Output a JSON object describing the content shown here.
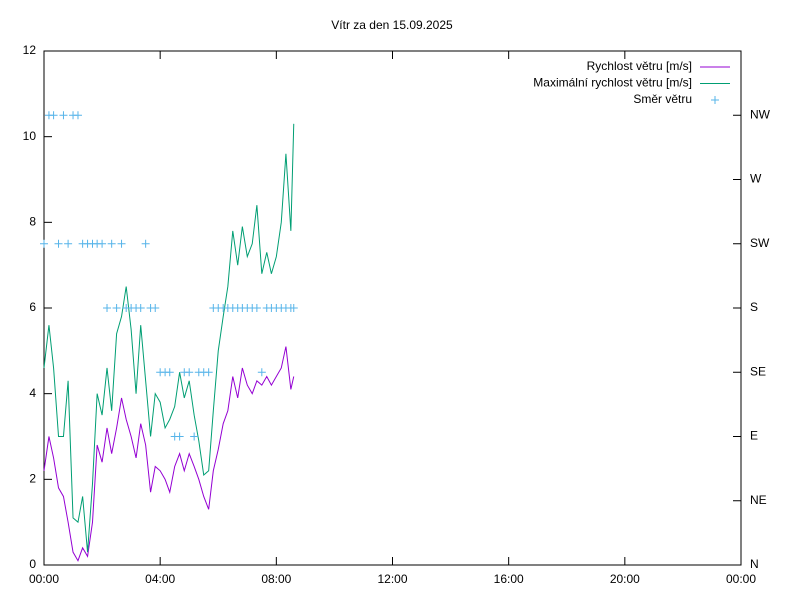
{
  "chart_data": {
    "type": "line",
    "title": "Vítr za den 15.09.2025",
    "x": [
      0,
      0.17,
      0.33,
      0.5,
      0.67,
      0.83,
      1,
      1.17,
      1.33,
      1.5,
      1.67,
      1.83,
      2,
      2.17,
      2.33,
      2.5,
      2.67,
      2.83,
      3,
      3.17,
      3.33,
      3.5,
      3.67,
      3.83,
      4,
      4.17,
      4.33,
      4.5,
      4.67,
      4.83,
      5,
      5.17,
      5.33,
      5.5,
      5.67,
      5.83,
      6,
      6.17,
      6.33,
      6.5,
      6.67,
      6.83,
      7,
      7.17,
      7.33,
      7.5,
      7.67,
      7.83,
      8,
      8.17,
      8.33,
      8.5,
      8.6
    ],
    "xlim": [
      0,
      24
    ],
    "xticks": [
      {
        "value": 0,
        "label": "00:00"
      },
      {
        "value": 4,
        "label": "04:00"
      },
      {
        "value": 8,
        "label": "08:00"
      },
      {
        "value": 12,
        "label": "12:00"
      },
      {
        "value": 16,
        "label": "16:00"
      },
      {
        "value": 20,
        "label": "20:00"
      },
      {
        "value": 24,
        "label": "00:00"
      }
    ],
    "ylim": [
      0,
      12
    ],
    "yticks": [
      0,
      2,
      4,
      6,
      8,
      10,
      12
    ],
    "y2lim": [
      0,
      360
    ],
    "y2ticks": [
      {
        "value": 0,
        "label": "N"
      },
      {
        "value": 45,
        "label": "NE"
      },
      {
        "value": 90,
        "label": "E"
      },
      {
        "value": 135,
        "label": "SE"
      },
      {
        "value": 180,
        "label": "S"
      },
      {
        "value": 225,
        "label": "SW"
      },
      {
        "value": 270,
        "label": "W"
      },
      {
        "value": 315,
        "label": "NW"
      }
    ],
    "legend": "top-right",
    "series": [
      {
        "name": "Rychlost větru [m/s]",
        "color": "#9400d3",
        "style": "line",
        "values": [
          2.2,
          3.0,
          2.5,
          1.8,
          1.6,
          1.0,
          0.3,
          0.1,
          0.4,
          0.2,
          1.0,
          2.8,
          2.4,
          3.2,
          2.6,
          3.2,
          3.9,
          3.4,
          3.0,
          2.5,
          3.3,
          2.8,
          1.7,
          2.3,
          2.2,
          2.0,
          1.7,
          2.3,
          2.6,
          2.2,
          2.6,
          2.3,
          2.0,
          1.6,
          1.3,
          2.2,
          2.7,
          3.3,
          3.6,
          4.4,
          3.9,
          4.6,
          4.2,
          4.0,
          4.3,
          4.2,
          4.4,
          4.2,
          4.4,
          4.6,
          5.1,
          4.1,
          4.4
        ]
      },
      {
        "name": "Maximální rychlost větru [m/s]",
        "color": "#009e73",
        "style": "line",
        "values": [
          4.6,
          5.6,
          4.6,
          3.0,
          3.0,
          4.3,
          1.1,
          1.0,
          1.6,
          0.3,
          1.9,
          4.0,
          3.5,
          4.6,
          3.6,
          5.4,
          5.8,
          6.5,
          5.5,
          4.0,
          5.6,
          4.3,
          3.0,
          4.0,
          3.8,
          3.2,
          3.4,
          3.7,
          4.5,
          3.9,
          4.3,
          3.5,
          2.9,
          2.1,
          2.2,
          3.6,
          5.0,
          5.8,
          6.5,
          7.8,
          7.0,
          7.9,
          7.2,
          7.5,
          8.4,
          6.8,
          7.3,
          6.8,
          7.2,
          8.0,
          9.6,
          7.8,
          10.3
        ]
      },
      {
        "name": "Směr větru",
        "color": "#56b4e9",
        "style": "points",
        "axis": "y2",
        "values": [
          225,
          315,
          315,
          225,
          315,
          225,
          315,
          315,
          225,
          225,
          225,
          225,
          225,
          180,
          225,
          180,
          225,
          180,
          180,
          180,
          180,
          225,
          180,
          180,
          135,
          135,
          135,
          90,
          90,
          135,
          135,
          90,
          135,
          135,
          135,
          180,
          180,
          180,
          180,
          180,
          180,
          180,
          180,
          180,
          180,
          135,
          180,
          180,
          180,
          180,
          180,
          180,
          180
        ]
      }
    ]
  }
}
